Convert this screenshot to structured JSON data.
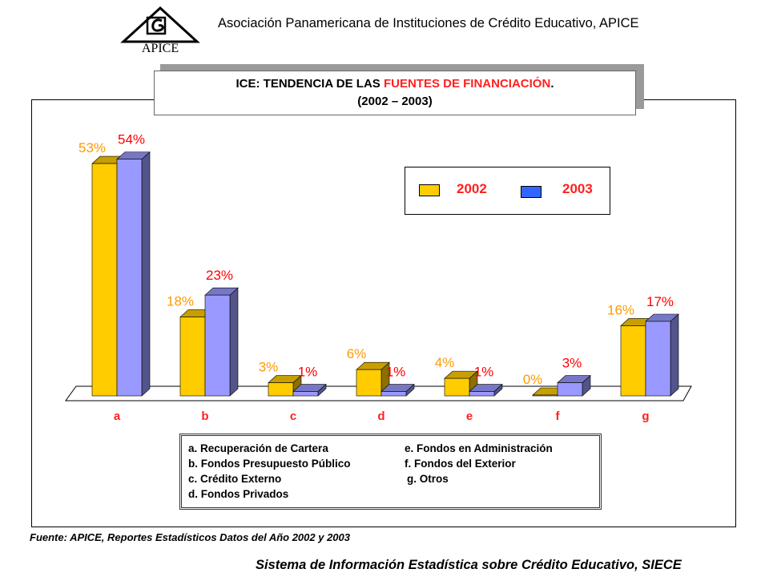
{
  "header": {
    "logo_text": "APICE",
    "org_title": "Asociación Panamericana de Instituciones de Crédito Educativo, APICE"
  },
  "title": {
    "line1_prefix": "ICE: TENDENCIA DE  LAS ",
    "line1_highlight": "FUENTES DE FINANCIACIÓN",
    "line1_suffix": ".",
    "line2": "(2002 – 2003)"
  },
  "colors": {
    "series_2002": "#ffcc00",
    "series_2003_legend": "#3366ff",
    "series_2003_bar": "#9999ff",
    "label_2002": "#ff9900",
    "label_2003": "#ff0000"
  },
  "chart_data": {
    "type": "bar",
    "categories": [
      "a",
      "b",
      "c",
      "d",
      "e",
      "f",
      "g"
    ],
    "series": [
      {
        "name": "2002",
        "values": [
          53,
          18,
          3,
          6,
          4,
          0,
          16
        ],
        "labels": [
          "53%",
          "18%",
          "3%",
          "6%",
          "4%",
          "0%",
          "16%"
        ]
      },
      {
        "name": "2003",
        "values": [
          54,
          23,
          1,
          1,
          1,
          3,
          17
        ],
        "labels": [
          "54%",
          "23%",
          "1%",
          "1%",
          "1%",
          "3%",
          "17%"
        ]
      }
    ],
    "ylim": [
      0,
      55
    ],
    "grid": false,
    "legend_position": "top-right"
  },
  "key": {
    "items": [
      "a. Recuperación de Cartera",
      "b. Fondos Presupuesto Público",
      "c. Crédito Externo",
      "d. Fondos Privados",
      "e.  Fondos en Administración",
      "f.  Fondos del Exterior",
      "g. Otros"
    ]
  },
  "source": "Fuente: APICE, Reportes Estadísticos Datos del Año 2002 y 2003",
  "footer": "Sistema de Información Estadística sobre Crédito Educativo, SIECE"
}
